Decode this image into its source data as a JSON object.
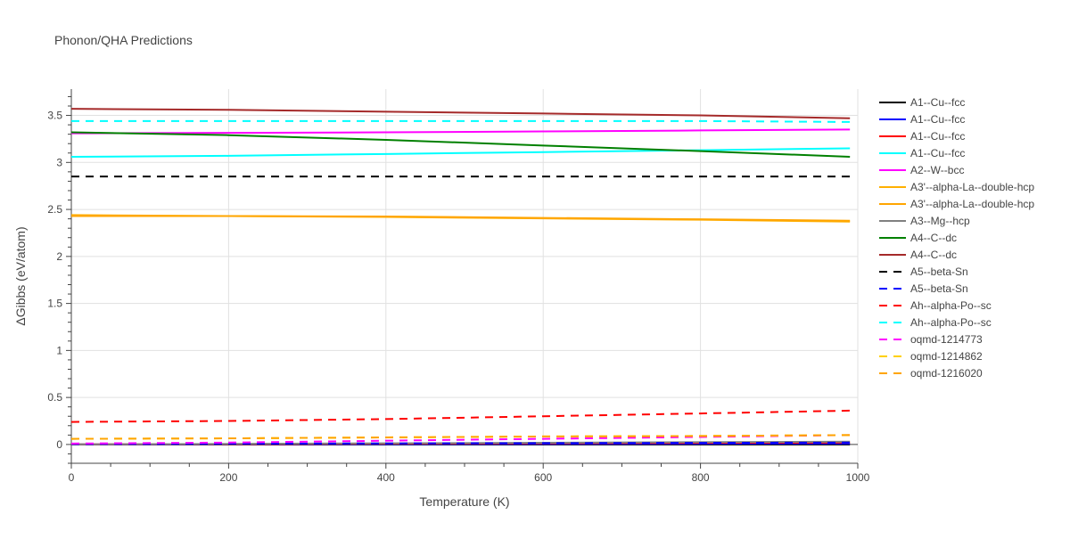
{
  "chart_data": {
    "type": "line",
    "title": "Phonon/QHA Predictions",
    "xlabel": "Temperature (K)",
    "ylabel": "ΔGibbs (eV/atom)",
    "xlim": [
      0,
      1000
    ],
    "ylim": [
      -0.2,
      3.78
    ],
    "x_ticks": [
      0,
      200,
      400,
      600,
      800,
      1000
    ],
    "y_ticks": [
      0,
      0.5,
      1,
      1.5,
      2,
      2.5,
      3,
      3.5
    ],
    "grid": true,
    "legend_position": "right",
    "series": [
      {
        "name": "A1--Cu--fcc",
        "color": "#000000",
        "dash": "solid",
        "x": [
          0,
          990
        ],
        "values": [
          0.0,
          0.0
        ]
      },
      {
        "name": "A1--Cu--fcc",
        "color": "#0000ff",
        "dash": "solid",
        "x": [
          0,
          990
        ],
        "values": [
          0.0,
          0.01
        ]
      },
      {
        "name": "A1--Cu--fcc",
        "color": "#ff0000",
        "dash": "solid",
        "x": [
          0,
          990
        ],
        "values": [
          0.0,
          0.02
        ]
      },
      {
        "name": "A1--Cu--fcc",
        "color": "#00ffff",
        "dash": "solid",
        "x": [
          0,
          200,
          400,
          600,
          800,
          990
        ],
        "values": [
          3.06,
          3.07,
          3.09,
          3.11,
          3.13,
          3.15
        ]
      },
      {
        "name": "A2--W--bcc",
        "color": "#ff00ff",
        "dash": "solid",
        "x": [
          0,
          200,
          400,
          600,
          800,
          990
        ],
        "values": [
          3.31,
          3.315,
          3.32,
          3.33,
          3.34,
          3.35
        ]
      },
      {
        "name": "A3'--alpha-La--double-hcp",
        "color": "#ffb000",
        "dash": "solid",
        "x": [
          0,
          200,
          400,
          600,
          800,
          990
        ],
        "values": [
          2.44,
          2.43,
          2.42,
          2.405,
          2.39,
          2.37
        ]
      },
      {
        "name": "A3'--alpha-La--double-hcp",
        "color": "#ffa500",
        "dash": "solid",
        "x": [
          0,
          200,
          400,
          600,
          800,
          990
        ],
        "values": [
          2.43,
          2.43,
          2.425,
          2.41,
          2.395,
          2.38
        ]
      },
      {
        "name": "A3--Mg--hcp",
        "color": "#808080",
        "dash": "solid",
        "x": [
          0,
          990
        ],
        "values": [
          0.0,
          0.03
        ]
      },
      {
        "name": "A4--C--dc",
        "color": "#008000",
        "dash": "solid",
        "x": [
          0,
          200,
          400,
          600,
          800,
          990
        ],
        "values": [
          3.32,
          3.29,
          3.24,
          3.18,
          3.12,
          3.06
        ]
      },
      {
        "name": "A4--C--dc",
        "color": "#a52a2a",
        "dash": "solid",
        "x": [
          0,
          200,
          400,
          600,
          800,
          990
        ],
        "values": [
          3.57,
          3.56,
          3.54,
          3.52,
          3.5,
          3.47
        ]
      },
      {
        "name": "A5--beta-Sn",
        "color": "#000000",
        "dash": "dash",
        "x": [
          0,
          990
        ],
        "values": [
          2.85,
          2.85
        ]
      },
      {
        "name": "A5--beta-Sn",
        "color": "#0000ff",
        "dash": "dash",
        "x": [
          0,
          990
        ],
        "values": [
          0.005,
          0.02
        ]
      },
      {
        "name": "Ah--alpha-Po--sc",
        "color": "#ff0000",
        "dash": "dash",
        "x": [
          0,
          200,
          400,
          600,
          800,
          990
        ],
        "values": [
          0.24,
          0.25,
          0.27,
          0.3,
          0.33,
          0.36
        ]
      },
      {
        "name": "Ah--alpha-Po--sc",
        "color": "#00ffff",
        "dash": "dash",
        "x": [
          0,
          200,
          400,
          600,
          800,
          990
        ],
        "values": [
          3.44,
          3.44,
          3.44,
          3.44,
          3.44,
          3.43
        ]
      },
      {
        "name": "oqmd-1214773",
        "color": "#ff00ff",
        "dash": "dash",
        "x": [
          0,
          200,
          400,
          600,
          800,
          990
        ],
        "values": [
          0.01,
          0.02,
          0.04,
          0.06,
          0.08,
          0.1
        ]
      },
      {
        "name": "oqmd-1214862",
        "color": "#ffd000",
        "dash": "dash",
        "x": [
          0,
          200,
          400,
          600,
          800,
          990
        ],
        "values": [
          0.06,
          0.065,
          0.075,
          0.085,
          0.09,
          0.1
        ]
      },
      {
        "name": "oqmd-1216020",
        "color": "#ffa500",
        "dash": "dash",
        "x": [
          0,
          200,
          400,
          600,
          800,
          990
        ],
        "values": [
          0.06,
          0.065,
          0.075,
          0.085,
          0.09,
          0.1
        ]
      }
    ]
  }
}
